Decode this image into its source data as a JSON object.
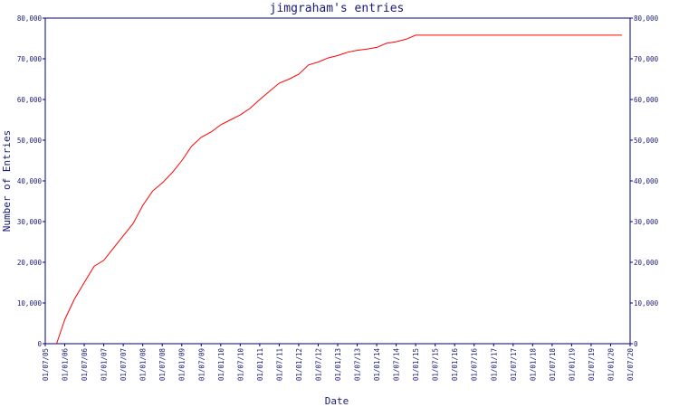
{
  "chart_data": {
    "type": "line",
    "title": "jimgraham's entries",
    "xlabel": "Date",
    "ylabel": "Number of Entries",
    "x_tick_labels": [
      "01/07/05",
      "01/01/06",
      "01/07/06",
      "01/01/07",
      "01/07/07",
      "01/01/08",
      "01/07/08",
      "01/01/09",
      "01/07/09",
      "01/01/10",
      "01/07/10",
      "01/01/11",
      "01/07/11",
      "01/01/12",
      "01/07/12",
      "01/01/13",
      "01/07/13",
      "01/01/14",
      "01/07/14",
      "01/01/15",
      "01/07/15",
      "01/01/16",
      "01/07/16",
      "01/01/17",
      "01/07/17",
      "01/01/18",
      "01/07/18",
      "01/01/19",
      "01/07/19",
      "01/01/20",
      "01/07/20"
    ],
    "y_tick_labels": [
      "0",
      "10,000",
      "20,000",
      "30,000",
      "40,000",
      "50,000",
      "60,000",
      "70,000",
      "80,000"
    ],
    "xlim": [
      "2005-07-01",
      "2020-07-01"
    ],
    "ylim": [
      0,
      80000
    ],
    "grid": false,
    "line_color": "#ff0000",
    "axis_color": "#000080",
    "series": [
      {
        "points": [
          [
            "2005-10-15",
            0
          ],
          [
            "2006-01-01",
            6000
          ],
          [
            "2006-04-01",
            11000
          ],
          [
            "2006-07-01",
            15000
          ],
          [
            "2006-10-01",
            19000
          ],
          [
            "2007-01-01",
            20500
          ],
          [
            "2007-04-01",
            23500
          ],
          [
            "2007-07-01",
            26500
          ],
          [
            "2007-10-01",
            29500
          ],
          [
            "2008-01-01",
            34000
          ],
          [
            "2008-04-01",
            37500
          ],
          [
            "2008-07-01",
            39500
          ],
          [
            "2008-10-01",
            42000
          ],
          [
            "2009-01-01",
            45000
          ],
          [
            "2009-04-01",
            48500
          ],
          [
            "2009-07-01",
            50700
          ],
          [
            "2009-10-01",
            52000
          ],
          [
            "2010-01-01",
            53800
          ],
          [
            "2010-04-01",
            55000
          ],
          [
            "2010-07-01",
            56200
          ],
          [
            "2010-10-01",
            57800
          ],
          [
            "2011-01-01",
            60000
          ],
          [
            "2011-04-01",
            62000
          ],
          [
            "2011-07-01",
            64000
          ],
          [
            "2011-10-01",
            65000
          ],
          [
            "2012-01-01",
            66200
          ],
          [
            "2012-04-01",
            68500
          ],
          [
            "2012-07-01",
            69200
          ],
          [
            "2012-10-01",
            70200
          ],
          [
            "2013-01-01",
            70800
          ],
          [
            "2013-04-01",
            71600
          ],
          [
            "2013-07-01",
            72100
          ],
          [
            "2013-10-01",
            72400
          ],
          [
            "2014-01-01",
            72800
          ],
          [
            "2014-04-01",
            73800
          ],
          [
            "2014-07-01",
            74200
          ],
          [
            "2014-10-01",
            74800
          ],
          [
            "2015-01-01",
            75800
          ],
          [
            "2020-04-15",
            75800
          ]
        ]
      }
    ]
  }
}
